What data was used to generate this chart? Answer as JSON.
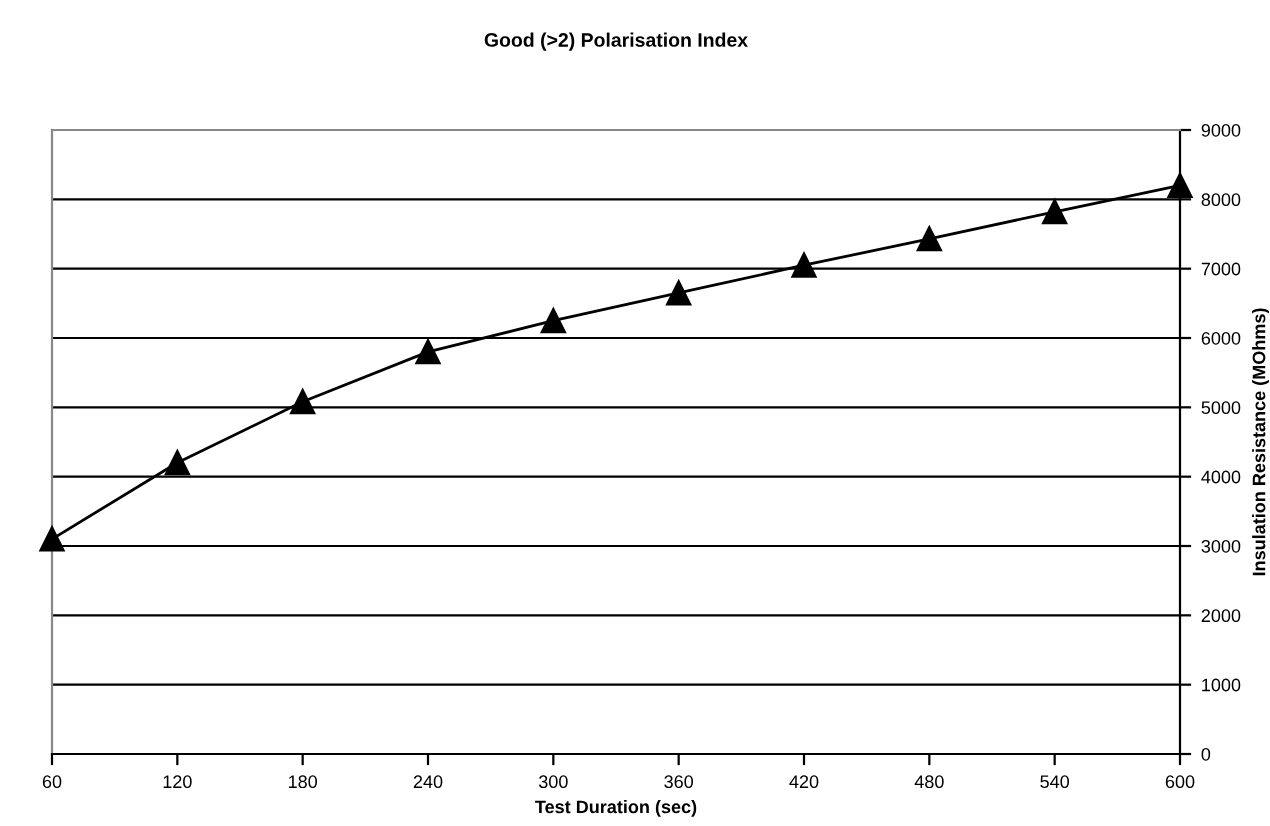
{
  "chart_data": {
    "type": "line",
    "title": "Good (>2) Polarisation Index",
    "xlabel": "Test Duration (sec)",
    "ylabel": "Insulation Resistance (MOhms)",
    "x": [
      60,
      120,
      180,
      240,
      300,
      360,
      420,
      480,
      540,
      600
    ],
    "series": [
      {
        "color": "#000000",
        "values": [
          3100,
          4200,
          5080,
          5800,
          6250,
          6650,
          7050,
          7430,
          7820,
          8200
        ]
      }
    ],
    "xlim": [
      60,
      600
    ],
    "xticks": [
      60,
      120,
      180,
      240,
      300,
      360,
      420,
      480,
      540,
      600
    ],
    "ylim": [
      0,
      9000
    ],
    "yticks": [
      0,
      1000,
      2000,
      3000,
      4000,
      5000,
      6000,
      7000,
      8000,
      9000
    ],
    "grid": "y",
    "marker": "triangle",
    "line_style": "solid"
  }
}
